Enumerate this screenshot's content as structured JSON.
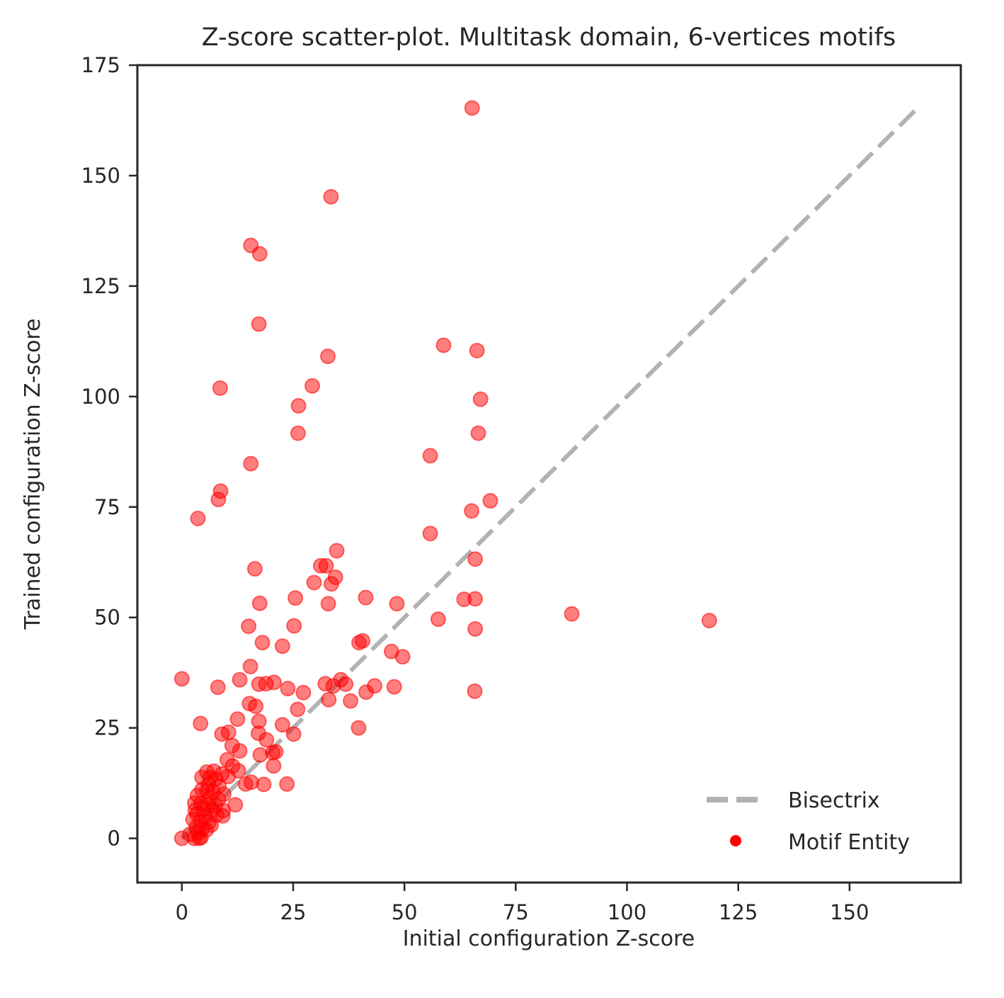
{
  "chart_data": {
    "type": "scatter",
    "title": "Z-score scatter-plot. Multitask domain, 6-vertices motifs",
    "xlabel": "Initial configuration Z-score",
    "ylabel": "Trained configuration Z-score",
    "xlim": [
      -10,
      175
    ],
    "ylim": [
      -10,
      175
    ],
    "xticks": [
      "0",
      "25",
      "50",
      "75",
      "100",
      "125",
      "150"
    ],
    "yticks": [
      "0",
      "25",
      "50",
      "75",
      "100",
      "125",
      "150",
      "175"
    ],
    "xtick_values": [
      0,
      25,
      50,
      75,
      100,
      125,
      150
    ],
    "ytick_values": [
      0,
      25,
      50,
      75,
      100,
      125,
      150,
      175
    ],
    "grid": false,
    "legend_position": "bottom-right",
    "series": [
      {
        "name": "Bisectrix",
        "kind": "line",
        "style": "dashed",
        "color": "#b2b2b2",
        "x": [
          0,
          165
        ],
        "y": [
          0,
          165
        ]
      },
      {
        "name": "Motif Entity",
        "kind": "scatter",
        "color": "#ff0000",
        "points": [
          [
            65.2,
            165.3
          ],
          [
            33.5,
            145.2
          ],
          [
            15.5,
            134.2
          ],
          [
            17.5,
            132.3
          ],
          [
            17.3,
            116.4
          ],
          [
            58.8,
            111.6
          ],
          [
            66.3,
            110.4
          ],
          [
            32.8,
            109.1
          ],
          [
            29.3,
            102.4
          ],
          [
            8.6,
            101.9
          ],
          [
            67.1,
            99.4
          ],
          [
            26.2,
            97.9
          ],
          [
            26.1,
            91.7
          ],
          [
            66.6,
            91.7
          ],
          [
            55.8,
            86.6
          ],
          [
            15.5,
            84.8
          ],
          [
            8.7,
            78.6
          ],
          [
            8.2,
            76.7
          ],
          [
            69.3,
            76.4
          ],
          [
            65.1,
            74.1
          ],
          [
            3.6,
            72.4
          ],
          [
            55.8,
            69.0
          ],
          [
            34.8,
            65.1
          ],
          [
            65.9,
            63.2
          ],
          [
            31.2,
            61.7
          ],
          [
            16.4,
            61.0
          ],
          [
            32.4,
            61.7
          ],
          [
            34.5,
            59.1
          ],
          [
            29.7,
            57.9
          ],
          [
            33.6,
            57.6
          ],
          [
            41.3,
            54.5
          ],
          [
            25.5,
            54.4
          ],
          [
            63.4,
            54.1
          ],
          [
            65.9,
            54.2
          ],
          [
            17.5,
            53.2
          ],
          [
            32.9,
            53.1
          ],
          [
            48.3,
            53.1
          ],
          [
            87.6,
            50.8
          ],
          [
            57.6,
            49.6
          ],
          [
            118.5,
            49.3
          ],
          [
            15.0,
            48.0
          ],
          [
            25.2,
            48.1
          ],
          [
            65.9,
            47.4
          ],
          [
            18.1,
            44.3
          ],
          [
            22.6,
            43.5
          ],
          [
            39.8,
            44.3
          ],
          [
            40.6,
            44.7
          ],
          [
            47.1,
            42.3
          ],
          [
            49.6,
            41.1
          ],
          [
            15.4,
            38.9
          ],
          [
            0.0,
            36.1
          ],
          [
            13.0,
            35.9
          ],
          [
            17.3,
            34.9
          ],
          [
            18.9,
            35.0
          ],
          [
            20.7,
            35.3
          ],
          [
            32.2,
            35.0
          ],
          [
            34.0,
            34.5
          ],
          [
            35.7,
            35.9
          ],
          [
            36.8,
            34.9
          ],
          [
            43.3,
            34.5
          ],
          [
            47.7,
            34.3
          ],
          [
            8.1,
            34.2
          ],
          [
            23.8,
            33.9
          ],
          [
            27.3,
            33.0
          ],
          [
            41.4,
            33.1
          ],
          [
            65.8,
            33.3
          ],
          [
            33.0,
            31.4
          ],
          [
            37.9,
            31.1
          ],
          [
            15.2,
            30.5
          ],
          [
            16.6,
            29.9
          ],
          [
            26.0,
            29.2
          ],
          [
            4.2,
            26.0
          ],
          [
            12.5,
            27.0
          ],
          [
            17.3,
            26.5
          ],
          [
            22.6,
            25.7
          ],
          [
            39.7,
            25.0
          ],
          [
            10.5,
            24.0
          ],
          [
            9.0,
            23.6
          ],
          [
            17.2,
            23.8
          ],
          [
            25.1,
            23.6
          ],
          [
            19.0,
            22.3
          ],
          [
            11.3,
            21.0
          ],
          [
            13.0,
            19.8
          ],
          [
            20.4,
            19.4
          ],
          [
            21.1,
            19.6
          ],
          [
            17.6,
            18.9
          ],
          [
            10.2,
            17.8
          ],
          [
            11.4,
            16.4
          ],
          [
            20.6,
            16.4
          ],
          [
            12.7,
            15.3
          ],
          [
            7.2,
            15.2
          ],
          [
            5.6,
            15.0
          ],
          [
            9.0,
            14.6
          ],
          [
            4.5,
            13.8
          ],
          [
            6.3,
            13.7
          ],
          [
            7.6,
            13.4
          ],
          [
            10.4,
            14.0
          ],
          [
            14.3,
            12.3
          ],
          [
            15.6,
            12.7
          ],
          [
            18.4,
            12.2
          ],
          [
            23.6,
            12.3
          ],
          [
            6.0,
            12.2
          ],
          [
            8.3,
            11.8
          ],
          [
            4.5,
            11.0
          ],
          [
            5.6,
            10.7
          ],
          [
            7.0,
            10.5
          ],
          [
            9.4,
            10.0
          ],
          [
            3.5,
            9.7
          ],
          [
            6.2,
            9.0
          ],
          [
            8.2,
            8.8
          ],
          [
            2.9,
            8.0
          ],
          [
            4.3,
            7.8
          ],
          [
            5.9,
            7.5
          ],
          [
            7.5,
            7.4
          ],
          [
            12.0,
            7.6
          ],
          [
            3.0,
            6.4
          ],
          [
            4.8,
            6.7
          ],
          [
            6.8,
            6.3
          ],
          [
            9.3,
            6.3
          ],
          [
            3.4,
            5.5
          ],
          [
            5.3,
            5.1
          ],
          [
            7.8,
            5.3
          ],
          [
            9.2,
            5.1
          ],
          [
            2.5,
            4.3
          ],
          [
            4.2,
            3.9
          ],
          [
            6.1,
            3.6
          ],
          [
            6.6,
            3.0
          ],
          [
            3.2,
            2.5
          ],
          [
            4.6,
            2.2
          ],
          [
            5.5,
            1.9
          ],
          [
            0.0,
            0.0
          ],
          [
            2.8,
            0.0
          ],
          [
            3.9,
            0.0
          ],
          [
            4.3,
            0.2
          ],
          [
            3.6,
            1.2
          ],
          [
            1.8,
            0.9
          ]
        ]
      }
    ]
  }
}
